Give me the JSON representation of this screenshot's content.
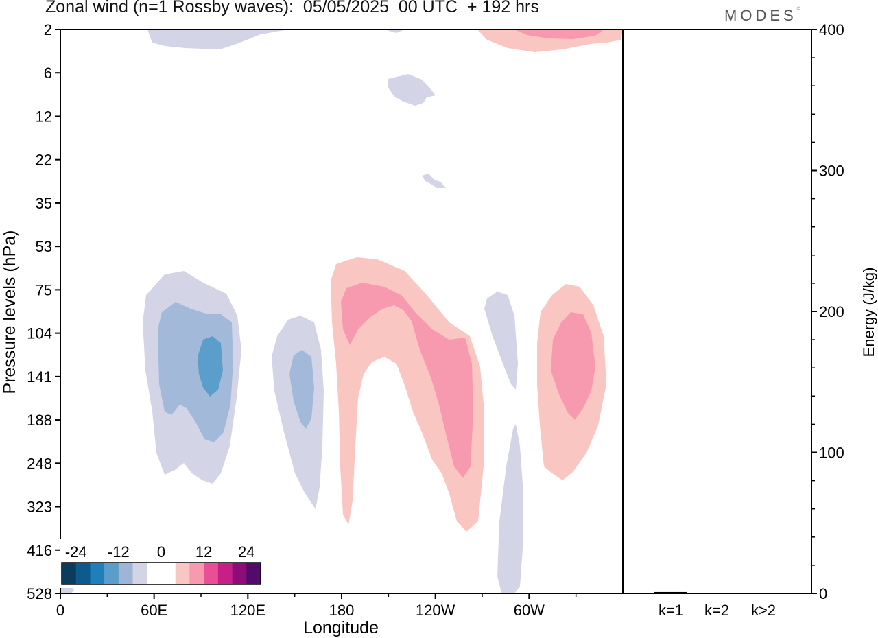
{
  "title": "Zonal wind (n=1 Rossby waves):  05/05/2025  00 UTC  + 192 hrs",
  "brand": "MODES",
  "chart_data": [
    {
      "type": "heatmap",
      "title": "Zonal wind (n=1 Rossby waves):  05/05/2025  00 UTC  + 192 hrs",
      "xlabel": "Longitude",
      "ylabel": "Pressure levels (hPa)",
      "x_ticks": [
        "0",
        "60E",
        "120E",
        "180",
        "120W",
        "60W"
      ],
      "x_tick_values": [
        0,
        60,
        120,
        180,
        240,
        300
      ],
      "xlim": [
        0,
        360
      ],
      "y_ticks": [
        "2",
        "6",
        "12",
        "22",
        "35",
        "53",
        "75",
        "104",
        "141",
        "188",
        "248",
        "323",
        "416",
        "528"
      ],
      "colorbar": {
        "labels": [
          "-24",
          "-12",
          "0",
          "12",
          "24"
        ],
        "label_values": [
          -24,
          -12,
          0,
          12,
          24
        ],
        "colors": [
          "#0c3c5c",
          "#0d5a8c",
          "#1f7fba",
          "#5b9ccb",
          "#9fb5d6",
          "#d3d5e6",
          "#ffffff",
          "#ffffff",
          "#f9c6c2",
          "#f79aaf",
          "#ea4f96",
          "#c71f86",
          "#8e0c77",
          "#520b6a"
        ]
      },
      "features": [
        {
          "lon": 75,
          "level": "141",
          "value": -8
        },
        {
          "lon": 90,
          "level": "141",
          "value": -12
        },
        {
          "lon": 152,
          "level": "141",
          "value": -8
        },
        {
          "lon": 270,
          "level": "104",
          "value": -4
        },
        {
          "lon": 277,
          "level": "323",
          "value": -4
        },
        {
          "lon": 195,
          "level": "104",
          "value": 8
        },
        {
          "lon": 240,
          "level": "188",
          "value": 8
        },
        {
          "lon": 325,
          "level": "141",
          "value": 8
        }
      ]
    },
    {
      "type": "bar",
      "ylabel": "Energy (J/kg)",
      "categories": [
        "k=1",
        "k=2",
        "k>2"
      ],
      "values": [
        1,
        0,
        0.3
      ],
      "ylim": [
        0,
        400
      ],
      "y_ticks": [
        "0",
        "100",
        "200",
        "300",
        "400"
      ]
    }
  ]
}
